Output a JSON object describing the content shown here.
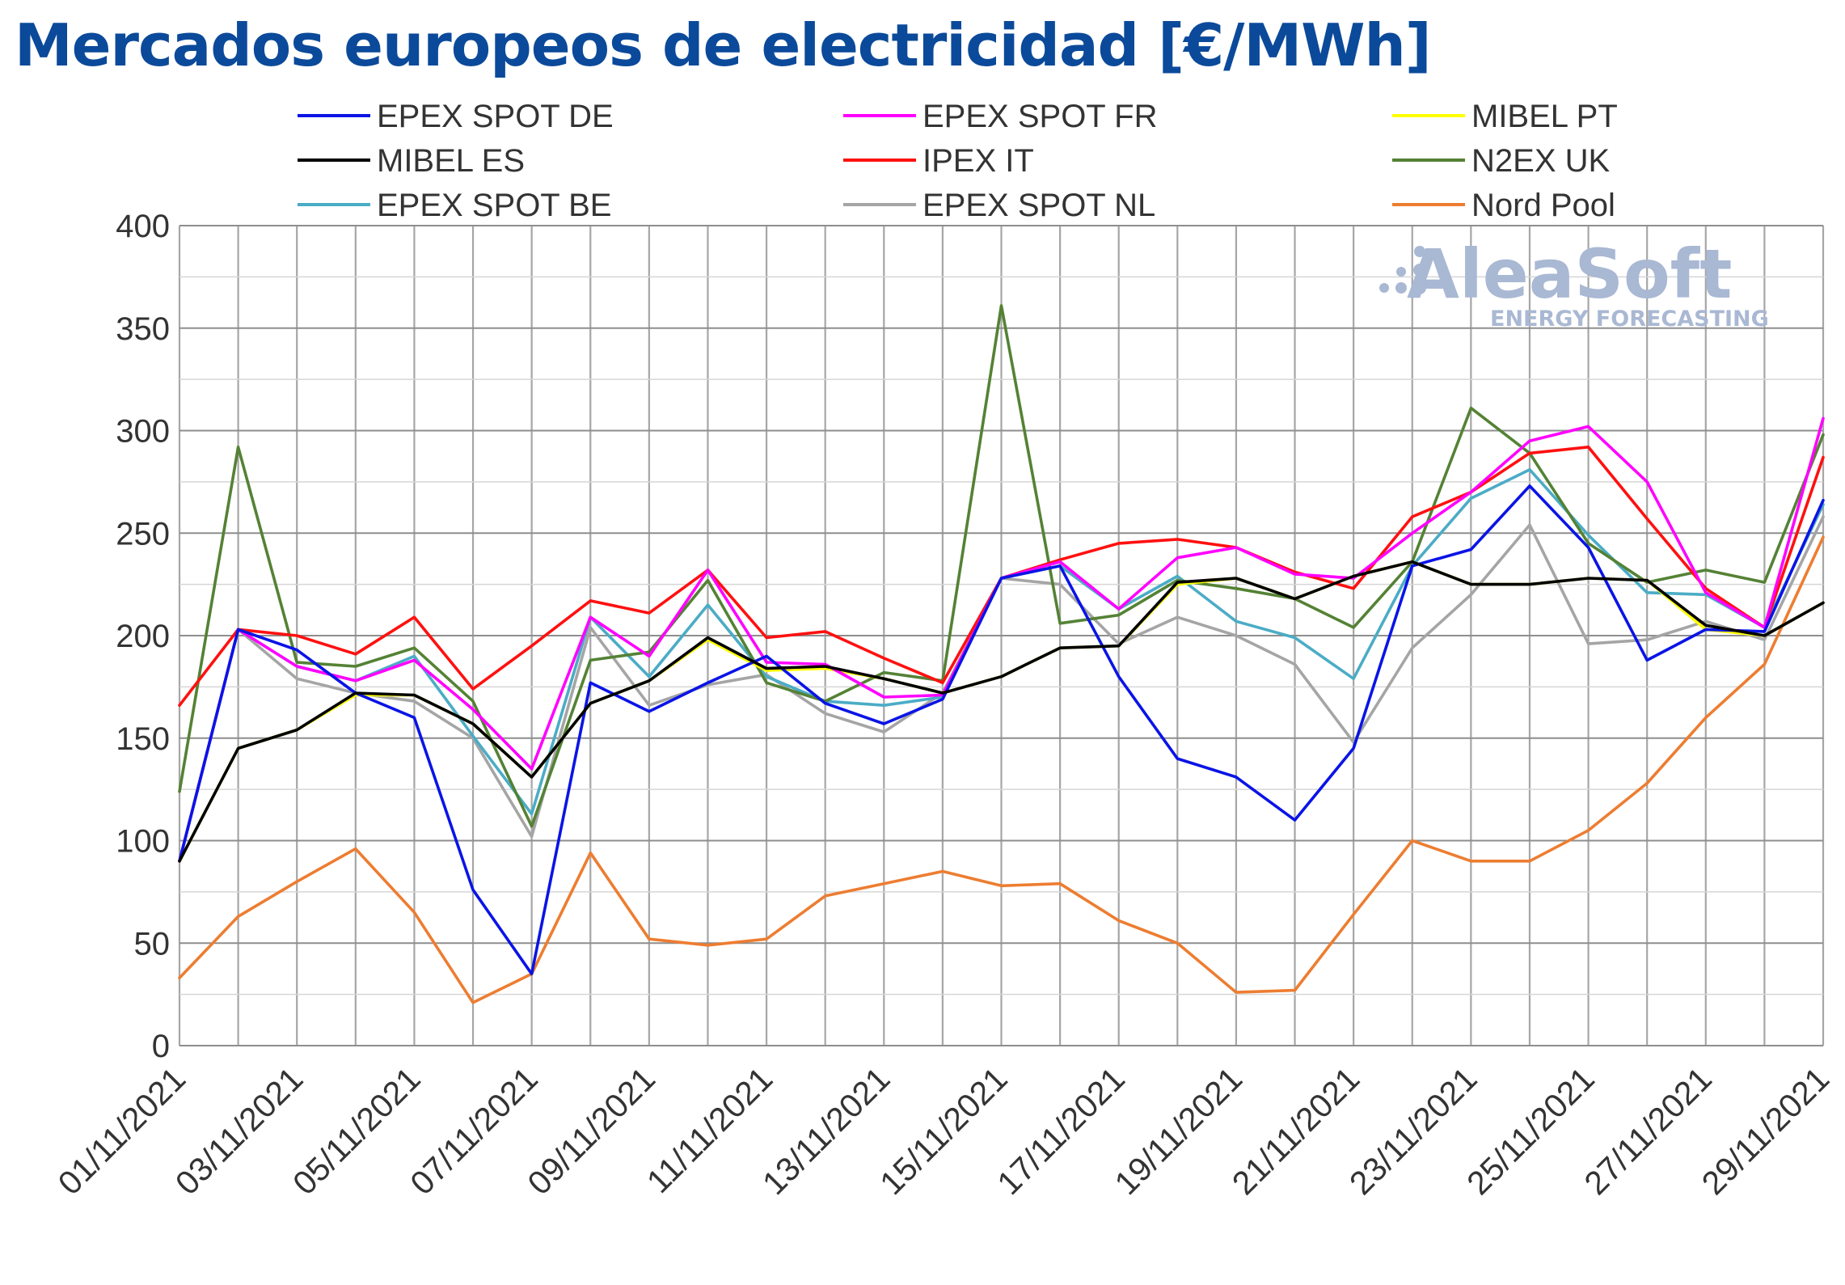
{
  "title": "Mercados europeos de electricidad [€/MWh]",
  "watermark": {
    "brand": "AleaSoft",
    "tagline": "ENERGY FORECASTING"
  },
  "chart_data": {
    "type": "line",
    "title": "Mercados europeos de electricidad [€/MWh]",
    "xlabel": "",
    "ylabel": "",
    "ylim": [
      0,
      400
    ],
    "yticks": [
      0,
      50,
      100,
      150,
      200,
      250,
      300,
      350,
      400
    ],
    "grid": true,
    "legend_position": "top",
    "x": [
      "01/11/2021",
      "02/11/2021",
      "03/11/2021",
      "04/11/2021",
      "05/11/2021",
      "06/11/2021",
      "07/11/2021",
      "08/11/2021",
      "09/11/2021",
      "10/11/2021",
      "11/11/2021",
      "12/11/2021",
      "13/11/2021",
      "14/11/2021",
      "15/11/2021",
      "16/11/2021",
      "17/11/2021",
      "18/11/2021",
      "19/11/2021",
      "20/11/2021",
      "21/11/2021",
      "22/11/2021",
      "23/11/2021",
      "24/11/2021",
      "25/11/2021",
      "26/11/2021",
      "27/11/2021",
      "28/11/2021",
      "29/11/2021"
    ],
    "xtick_labels": [
      "01/11/2021",
      "03/11/2021",
      "05/11/2021",
      "07/11/2021",
      "09/11/2021",
      "11/11/2021",
      "13/11/2021",
      "15/11/2021",
      "17/11/2021",
      "19/11/2021",
      "21/11/2021",
      "23/11/2021",
      "25/11/2021",
      "27/11/2021",
      "29/11/2021"
    ],
    "series": [
      {
        "name": "EPEX SPOT DE",
        "color": "#0a14e6",
        "values": [
          90,
          203,
          193,
          172,
          160,
          76,
          35,
          177,
          163,
          177,
          190,
          167,
          157,
          169,
          228,
          234,
          180,
          140,
          131,
          110,
          145,
          234,
          242,
          273,
          243,
          188,
          203,
          202,
          266
        ]
      },
      {
        "name": "EPEX SPOT FR",
        "color": "#ff00ff",
        "values": [
          90,
          203,
          185,
          178,
          188,
          164,
          135,
          209,
          190,
          232,
          187,
          186,
          170,
          171,
          228,
          236,
          213,
          238,
          243,
          230,
          228,
          250,
          270,
          295,
          302,
          275,
          221,
          204,
          306
        ]
      },
      {
        "name": "MIBEL PT",
        "color": "#ffff00",
        "values": [
          90,
          145,
          154,
          171,
          171,
          157,
          131,
          167,
          178,
          198,
          183,
          184,
          179,
          172,
          180,
          194,
          195,
          225,
          228,
          218,
          229,
          236,
          225,
          225,
          228,
          227,
          203,
          200,
          216
        ]
      },
      {
        "name": "MIBEL ES",
        "color": "#000000",
        "values": [
          90,
          145,
          154,
          172,
          171,
          157,
          131,
          167,
          178,
          199,
          184,
          185,
          179,
          172,
          180,
          194,
          195,
          226,
          228,
          218,
          229,
          236,
          225,
          225,
          228,
          227,
          205,
          200,
          216
        ]
      },
      {
        "name": "IPEX IT",
        "color": "#ff1010",
        "values": [
          166,
          203,
          200,
          191,
          209,
          174,
          195,
          217,
          211,
          232,
          199,
          202,
          189,
          177,
          228,
          237,
          245,
          247,
          243,
          231,
          223,
          258,
          270,
          289,
          292,
          257,
          223,
          204,
          287
        ]
      },
      {
        "name": "N2EX UK",
        "color": "#548235",
        "values": [
          124,
          292,
          187,
          185,
          194,
          168,
          107,
          188,
          192,
          227,
          177,
          168,
          182,
          178,
          361,
          206,
          210,
          227,
          223,
          218,
          204,
          236,
          311,
          289,
          245,
          226,
          232,
          226,
          298
        ]
      },
      {
        "name": "EPEX SPOT BE",
        "color": "#4bacc6",
        "values": [
          90,
          203,
          185,
          178,
          190,
          151,
          113,
          209,
          180,
          215,
          180,
          168,
          166,
          170,
          228,
          234,
          213,
          229,
          207,
          199,
          179,
          234,
          267,
          281,
          249,
          221,
          220,
          204,
          264
        ]
      },
      {
        "name": "EPEX SPOT NL",
        "color": "#a5a5a5",
        "values": [
          90,
          203,
          179,
          172,
          168,
          150,
          102,
          204,
          166,
          176,
          181,
          162,
          153,
          172,
          228,
          225,
          196,
          209,
          200,
          186,
          148,
          194,
          220,
          254,
          196,
          198,
          207,
          198,
          258
        ]
      },
      {
        "name": "Nord Pool",
        "color": "#ed7d31",
        "values": [
          33,
          63,
          80,
          96,
          65,
          21,
          35,
          94,
          52,
          49,
          52,
          73,
          79,
          85,
          78,
          79,
          61,
          50,
          26,
          27,
          64,
          100,
          90,
          90,
          105,
          128,
          160,
          186,
          248
        ]
      }
    ]
  }
}
